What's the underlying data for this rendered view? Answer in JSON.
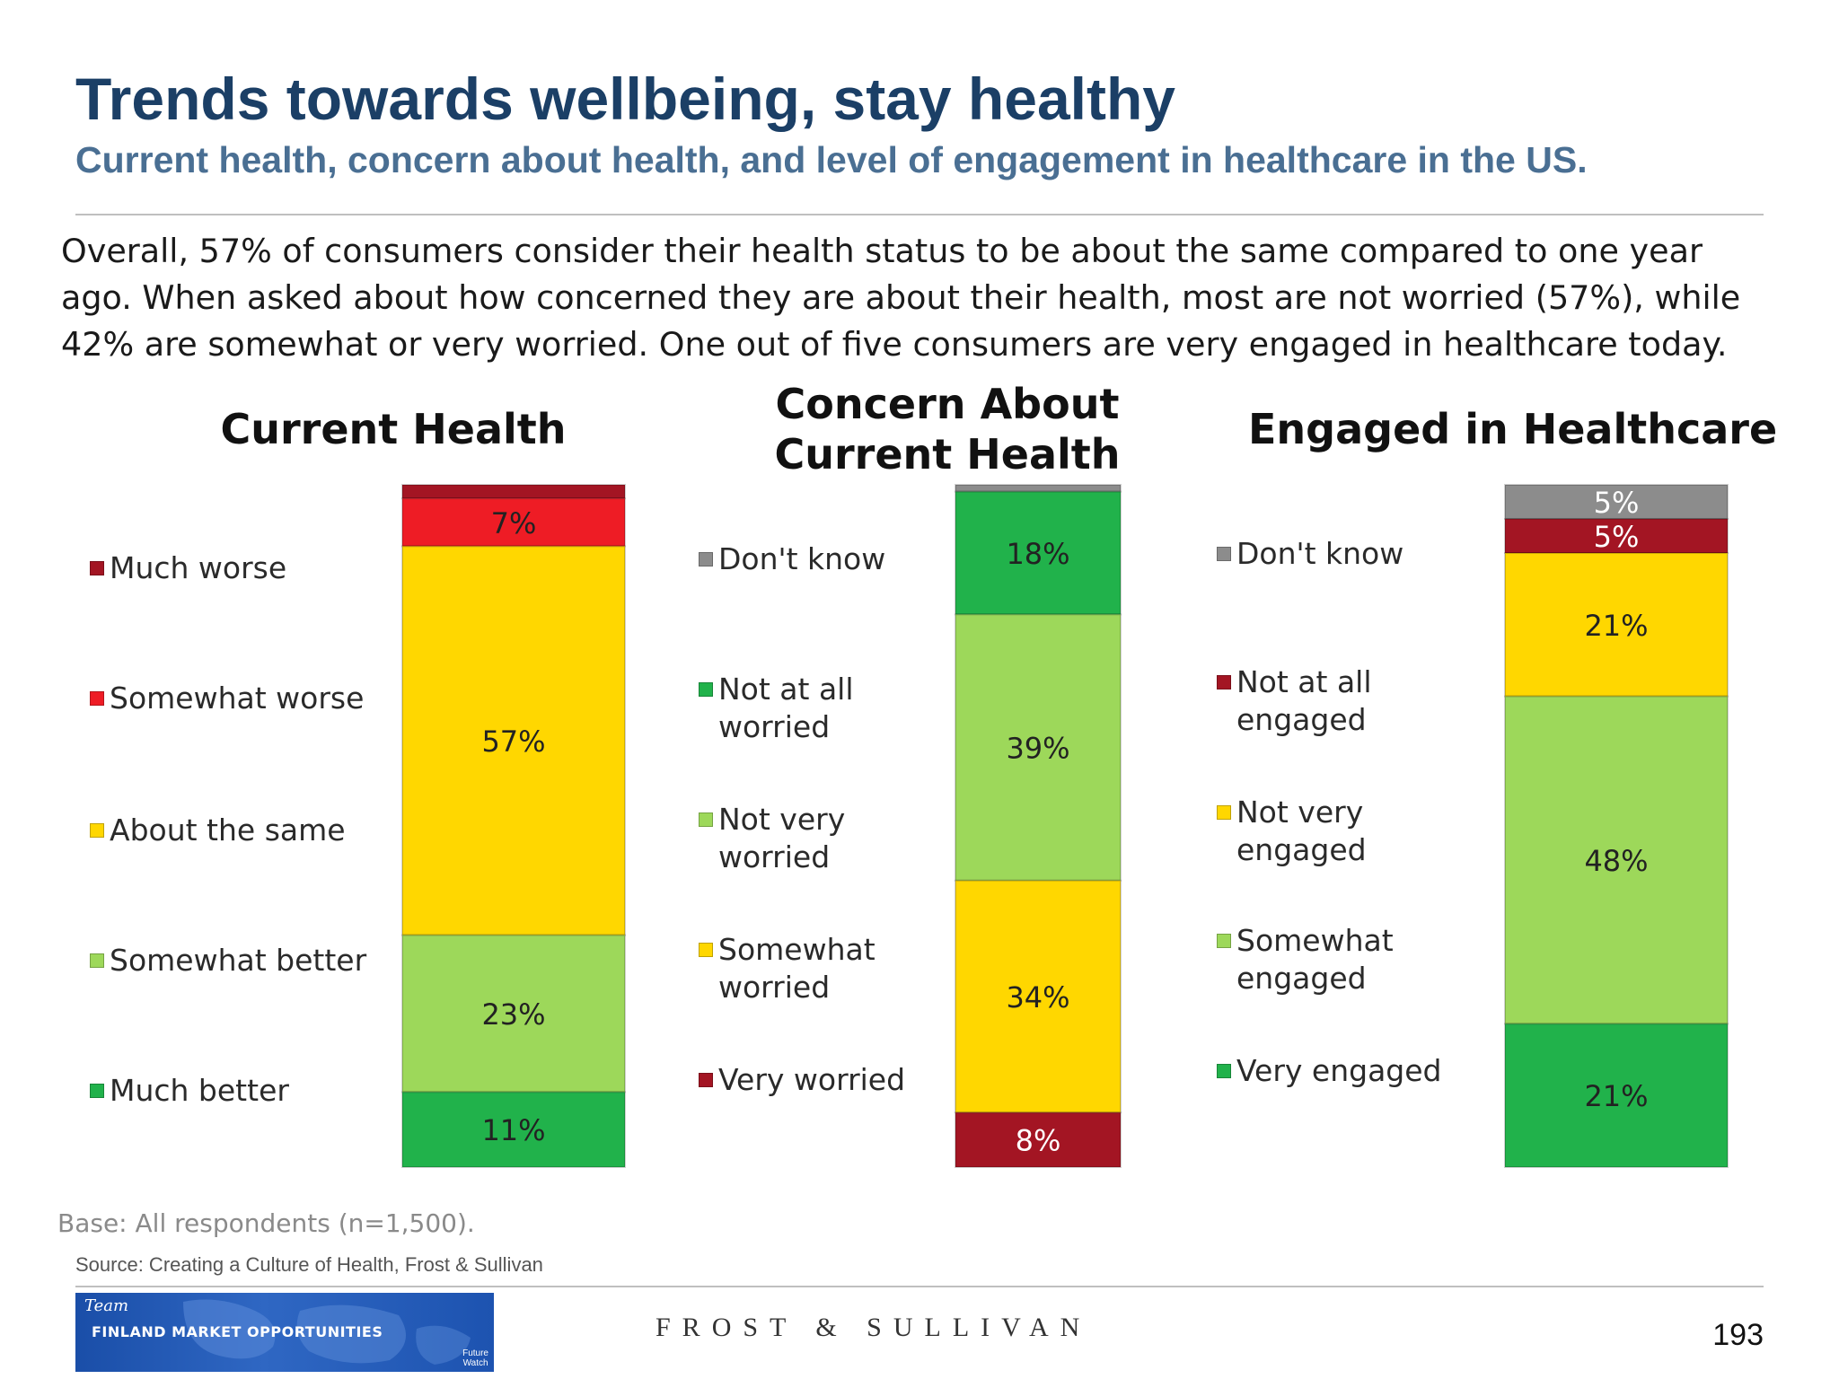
{
  "title": "Trends towards wellbeing, stay healthy",
  "subtitle": "Current health, concern about health, and level of engagement in healthcare in the US.",
  "intro_lines": [
    "Overall, 57% of consumers consider their health status to be about the same compared to one year",
    "ago. When asked about how concerned they are about their health, most are not worried (57%), while",
    "42% are somewhat or very worried. One out of five consumers are very engaged in healthcare today."
  ],
  "chart_data": [
    {
      "type": "bar",
      "stacked": true,
      "title": "Current Health",
      "categories": [
        "Current Health"
      ],
      "series": [
        {
          "name": "Much worse",
          "values": [
            2
          ],
          "color": "#a31523",
          "label": ""
        },
        {
          "name": "Somewhat worse",
          "values": [
            7
          ],
          "color": "#ee1c25",
          "label": "7%"
        },
        {
          "name": "About the same",
          "values": [
            57
          ],
          "color": "#ffd700",
          "label": "57%"
        },
        {
          "name": "Somewhat better",
          "values": [
            23
          ],
          "color": "#9dd85a",
          "label": "23%"
        },
        {
          "name": "Much better",
          "values": [
            11
          ],
          "color": "#21b24b",
          "label": "11%"
        }
      ],
      "ylim": [
        0,
        100
      ]
    },
    {
      "type": "bar",
      "stacked": true,
      "title": "Concern About\nCurrent Health",
      "categories": [
        "Concern About Current Health"
      ],
      "series": [
        {
          "name": "Don't know",
          "values": [
            1
          ],
          "color": "#8c8c8c",
          "label": ""
        },
        {
          "name": "Not at all\nworried",
          "values": [
            18
          ],
          "color": "#21b24b",
          "label": "18%"
        },
        {
          "name": "Not very\nworried",
          "values": [
            39
          ],
          "color": "#9dd85a",
          "label": "39%"
        },
        {
          "name": "Somewhat\nworried",
          "values": [
            34
          ],
          "color": "#ffd700",
          "label": "34%"
        },
        {
          "name": "Very worried",
          "values": [
            8
          ],
          "color": "#a31523",
          "label": "8%"
        }
      ],
      "ylim": [
        0,
        100
      ]
    },
    {
      "type": "bar",
      "stacked": true,
      "title": "Engaged in Healthcare",
      "categories": [
        "Engaged in Healthcare"
      ],
      "series": [
        {
          "name": "Don't know",
          "values": [
            5
          ],
          "color": "#8c8c8c",
          "label": "5%"
        },
        {
          "name": "Not at all\nengaged",
          "values": [
            5
          ],
          "color": "#a31523",
          "label": "5%"
        },
        {
          "name": "Not very\nengaged",
          "values": [
            21
          ],
          "color": "#ffd700",
          "label": "21%"
        },
        {
          "name": "Somewhat\nengaged",
          "values": [
            48
          ],
          "color": "#9dd85a",
          "label": "48%"
        },
        {
          "name": "Very engaged",
          "values": [
            21
          ],
          "color": "#21b24b",
          "label": "21%"
        }
      ],
      "ylim": [
        0,
        100
      ]
    }
  ],
  "base_note": "Base: All respondents (n=1,500).",
  "source_note": "Source:   Creating a Culture of Health, Frost & Sullivan",
  "footer": {
    "logo_team": "Team",
    "logo_text": "FINLAND MARKET OPPORTUNITIES",
    "logo_sub": "Future\nWatch",
    "brand": "FROST & SULLIVAN",
    "page_number": "193"
  }
}
